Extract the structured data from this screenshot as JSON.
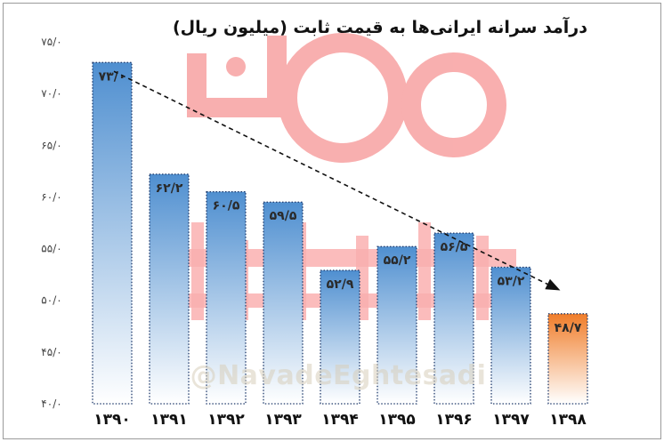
{
  "chart_data": {
    "type": "bar",
    "title": "درآمد سرانه ایرانی‌ها به قیمت ثابت (میلیون ریال)",
    "categories": [
      "۱۳۹۰",
      "۱۳۹۱",
      "۱۳۹۲",
      "۱۳۹۳",
      "۱۳۹۴",
      "۱۳۹۵",
      "۱۳۹۶",
      "۱۳۹۷",
      "۱۳۹۸"
    ],
    "values": [
      73.0,
      62.2,
      60.5,
      59.5,
      52.9,
      55.2,
      56.5,
      53.2,
      48.7
    ],
    "data_labels": [
      "۷۳/۰",
      "۶۲/۲",
      "۶۰/۵",
      "۵۹/۵",
      "۵۲/۹",
      "۵۵/۲",
      "۵۶/۵",
      "۵۳/۲",
      "۴۸/۷"
    ],
    "ylim": [
      40,
      75
    ],
    "yticks": [
      40,
      45,
      50,
      55,
      60,
      65,
      70,
      75
    ],
    "ytick_labels": [
      "۴۰/۰",
      "۴۵/۰",
      "۵۰/۰",
      "۵۵/۰",
      "۶۰/۰",
      "۶۵/۰",
      "۷۰/۰",
      "۷۵/۰"
    ],
    "xlabel": "",
    "ylabel": "",
    "grid": false,
    "trend_line": {
      "from_category": "۱۳۹۰",
      "to_category": "۱۳۹۸",
      "style": "dashed-arrow"
    },
    "colors": {
      "bar": "#5b9bd5",
      "highlight_bar": "#f28c3c",
      "bar_border": "#1f3a6b",
      "trend": "#111111"
    },
    "highlight_category": "۱۳۹۸"
  },
  "watermark": {
    "logo_text": "نود اقتصادی",
    "handle": "@NavadeEghtesadi",
    "logo_color": "#f26f6f"
  }
}
